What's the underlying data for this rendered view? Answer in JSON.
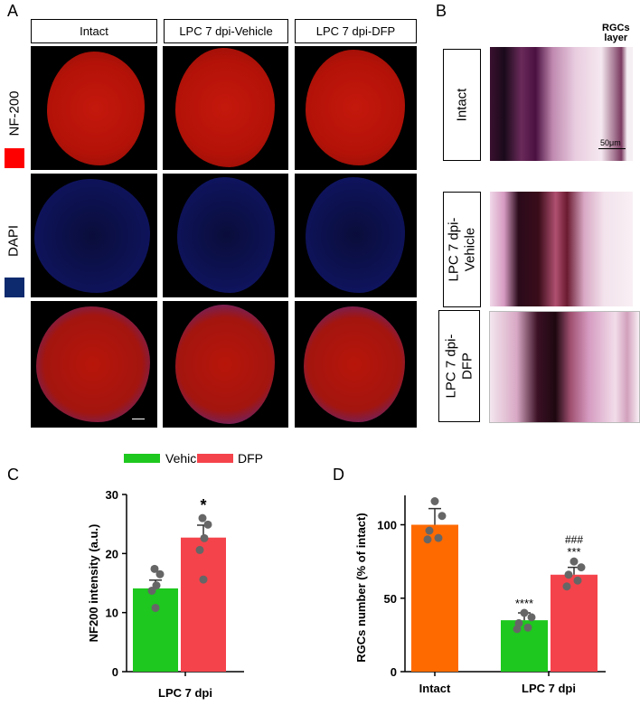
{
  "panel_a": {
    "letter": "A",
    "col_headers": [
      "Intact",
      "LPC 7 dpi-Vehicle",
      "LPC 7 dpi-DFP"
    ],
    "row_labels": [
      "NF-200",
      "DAPI"
    ],
    "colors": {
      "nf200": "#ff0000",
      "dapi": "#0d2a6e"
    }
  },
  "panel_b": {
    "letter": "B",
    "layer_label_1": "RGCs",
    "layer_label_2": "layer",
    "scale_label": "50μm",
    "row_labels": [
      "Intact",
      "LPC 7 dpi-\nVehicle",
      "LPC 7 dpi-\nDFP"
    ]
  },
  "panel_c": {
    "letter": "C"
  },
  "panel_d": {
    "letter": "D"
  },
  "chart_data": [
    {
      "type": "bar",
      "ylabel": "NF200 intensity (a.u.)",
      "xlabel": "LPC 7 dpi",
      "ylim": [
        0,
        30
      ],
      "yticks": [
        0,
        10,
        20,
        30
      ],
      "categories": [
        "Vehicle",
        "DFP"
      ],
      "values": [
        14.1,
        22.7
      ],
      "errors": [
        1.4,
        2.1
      ],
      "colors": [
        "#1ec81e",
        "#f5434b"
      ],
      "points": [
        [
          17.4,
          16.5,
          14.6,
          13.7,
          10.8
        ],
        [
          26.0,
          24.9,
          22.6,
          20.6,
          15.6
        ]
      ],
      "legend": [
        "Vehicle",
        "DFP"
      ],
      "legend_position": "top",
      "annotations": [
        "",
        "*"
      ]
    },
    {
      "type": "bar",
      "ylabel": "RGCs number (% of intact)",
      "ylim": [
        0,
        120
      ],
      "yticks": [
        0,
        50,
        100
      ],
      "categories": [
        "Intact",
        "Vehicle",
        "DFP"
      ],
      "xlabels": [
        "Intact",
        "LPC 7 dpi"
      ],
      "values": [
        100,
        35,
        66
      ],
      "errors": [
        11,
        5,
        5
      ],
      "colors": [
        "#ff6a00",
        "#1ec81e",
        "#f5434b"
      ],
      "points": [
        [
          116,
          106,
          96,
          91,
          90
        ],
        [
          40,
          37,
          33,
          30,
          29
        ],
        [
          75,
          71,
          66,
          62,
          58
        ]
      ],
      "annotations": [
        "",
        "****",
        "***"
      ],
      "annotations_2": [
        "",
        "",
        "###"
      ]
    }
  ]
}
